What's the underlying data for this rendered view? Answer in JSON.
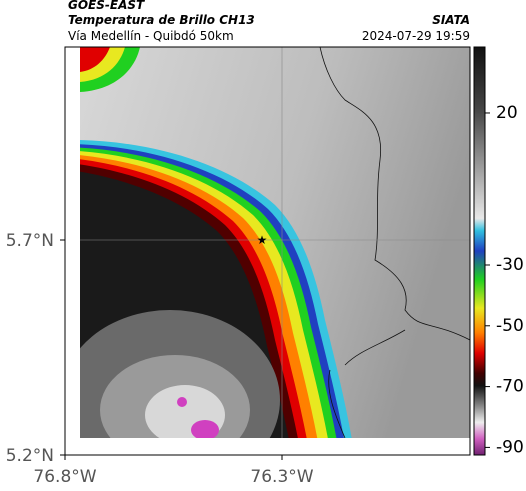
{
  "header": {
    "title": "GOES-EAST",
    "subtitle": "Temperatura de Brillo CH13",
    "route": "Vía Medellín - Quibdó 50km",
    "source": "SIATA",
    "timestamp": "2024-07-29 19:59"
  },
  "map": {
    "lat_labels": [
      "5.7°N",
      "5.2°N"
    ],
    "lon_labels": [
      "76.8°W",
      "76.3°W"
    ]
  },
  "colorbar": {
    "lim": [
      -92.5,
      41.7
    ],
    "ticks": [
      20,
      -30,
      -50,
      -70,
      -90
    ]
  }
}
